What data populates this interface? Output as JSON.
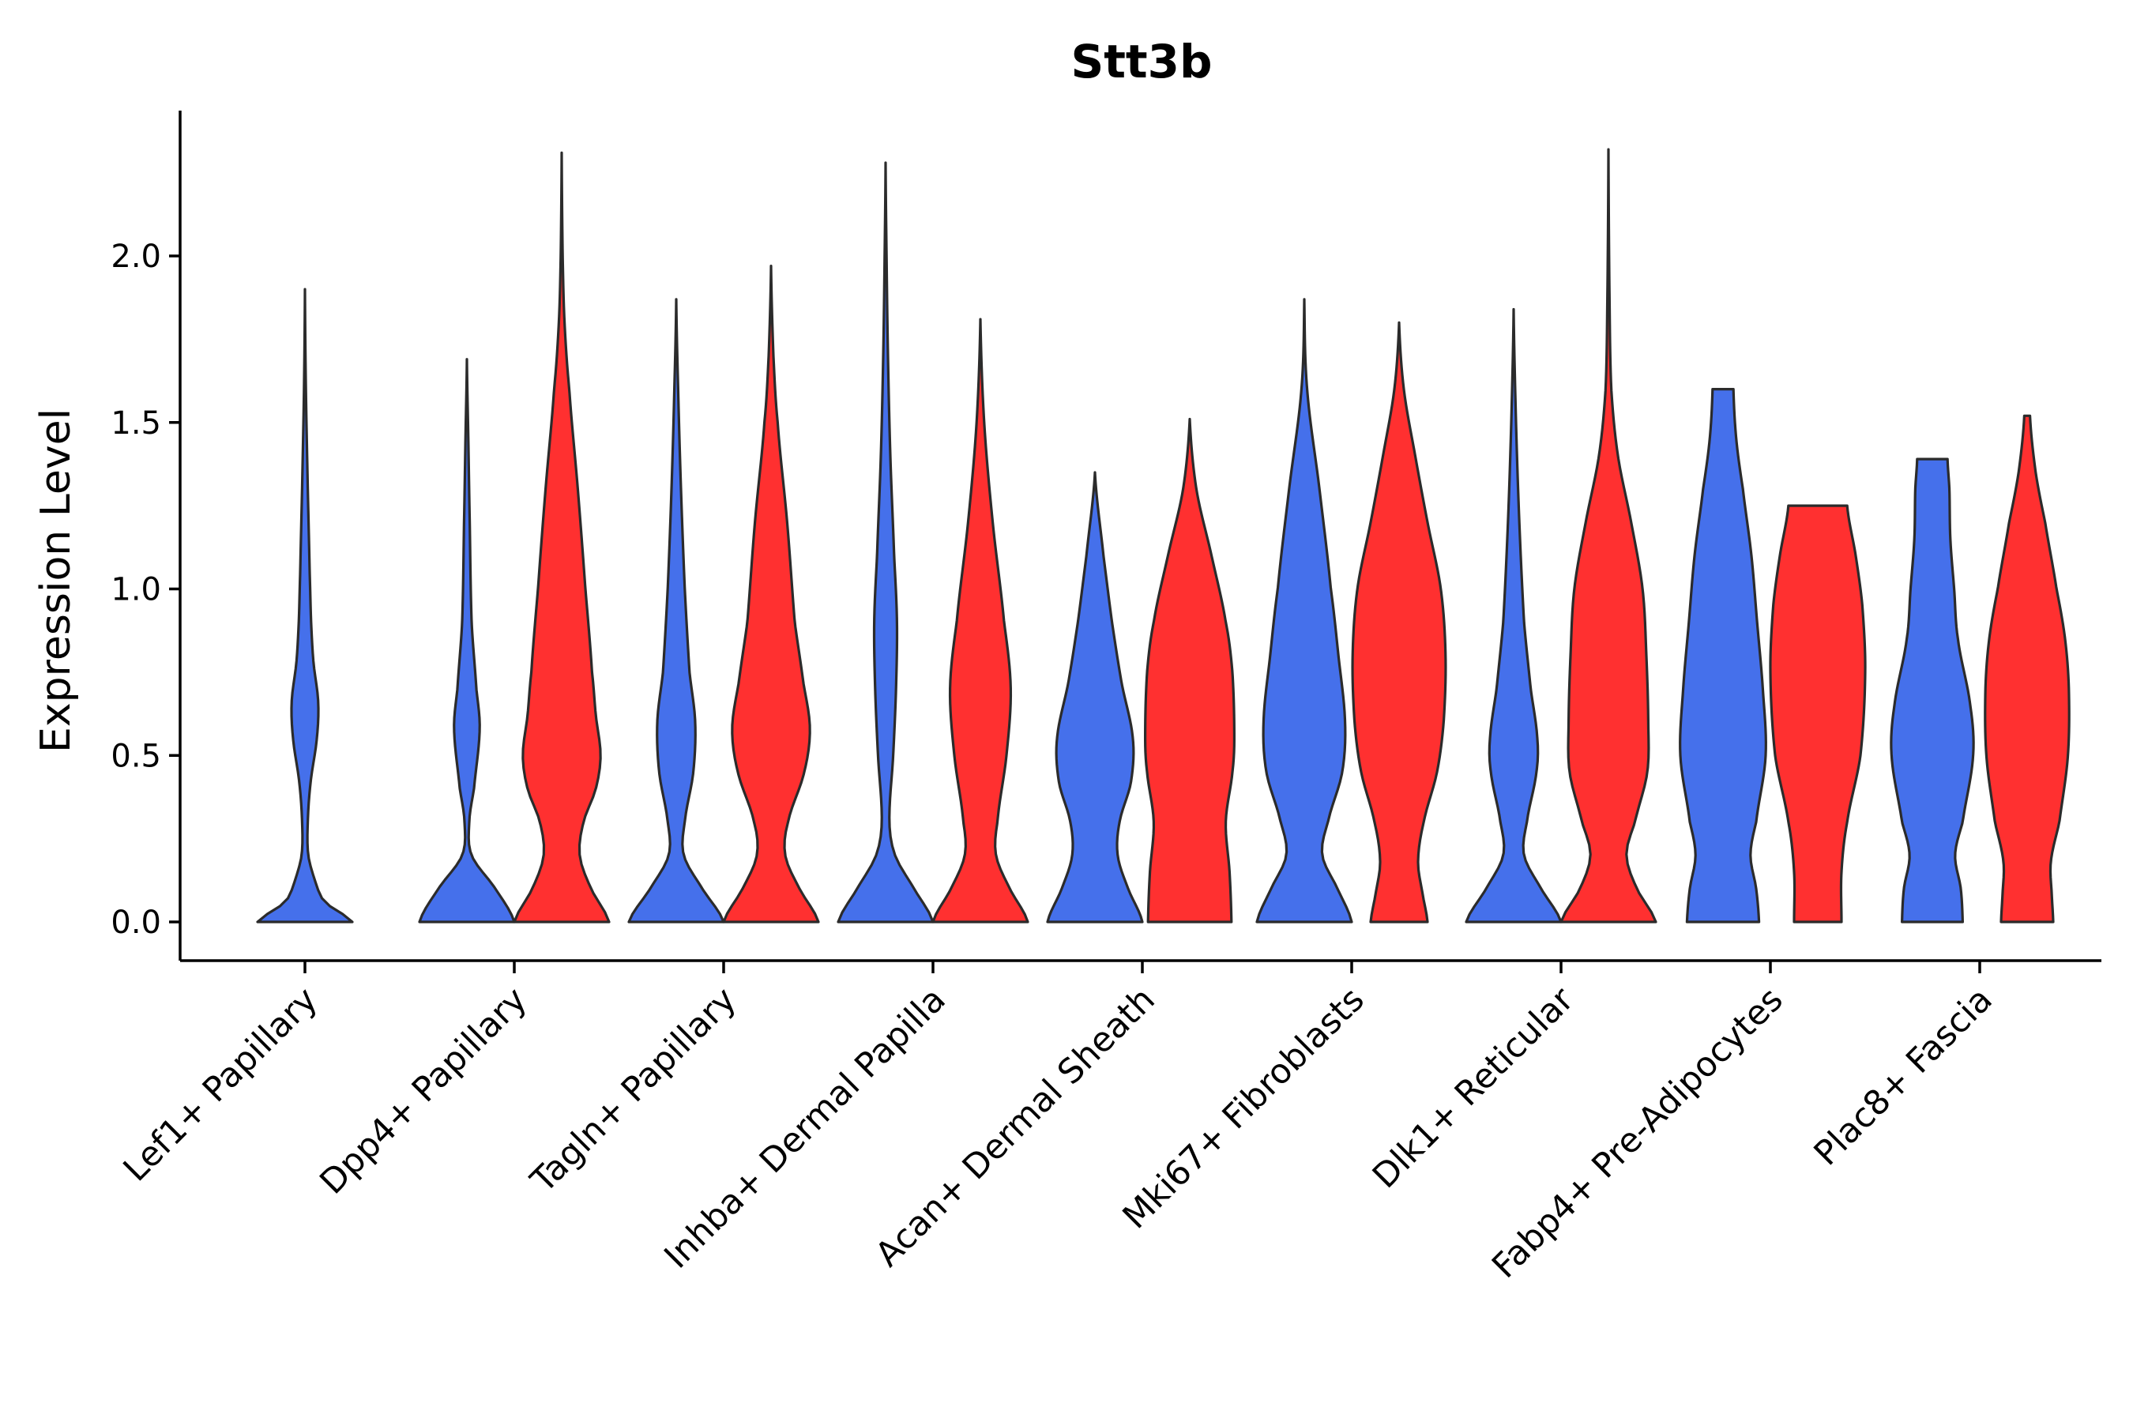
{
  "chart_data": {
    "type": "violin",
    "title": "Stt3b",
    "xlabel": "",
    "ylabel": "Expression Level",
    "ylim": [
      -0.12,
      2.43
    ],
    "yticks": [
      "0.0",
      "0.5",
      "1.0",
      "1.5",
      "2.0"
    ],
    "ytick_values": [
      0.0,
      0.5,
      1.0,
      1.5,
      2.0
    ],
    "categories": [
      "Lef1+ Papillary",
      "Dpp4+ Papillary",
      "Tagln+ Papillary",
      "Inhba+ Dermal Papilla",
      "Acan+ Dermal Sheath",
      "Mki67+ Fibroblasts",
      "Dlk1+ Reticular",
      "Fabp4+ Pre-Adipocytes",
      "Plac8+ Fascia"
    ],
    "series_colors": {
      "blue": "#4570EB",
      "red": "#FF3030"
    },
    "violins": [
      {
        "category": "Lef1+ Papillary",
        "color": "blue",
        "max": 1.9,
        "profile": [
          [
            0,
            1.0
          ],
          [
            0.06,
            0.42
          ],
          [
            0.12,
            0.22
          ],
          [
            0.2,
            0.07
          ],
          [
            0.3,
            0.06
          ],
          [
            0.42,
            0.12
          ],
          [
            0.55,
            0.25
          ],
          [
            0.66,
            0.28
          ],
          [
            0.78,
            0.18
          ],
          [
            0.9,
            0.13
          ],
          [
            1.05,
            0.1
          ],
          [
            1.3,
            0.06
          ],
          [
            1.6,
            0.02
          ],
          [
            1.9,
            0.0
          ]
        ]
      },
      {
        "category": "Dpp4+ Papillary",
        "color": "blue",
        "max": 1.69,
        "profile": [
          [
            0,
            1.0
          ],
          [
            0.1,
            0.6
          ],
          [
            0.2,
            0.1
          ],
          [
            0.3,
            0.05
          ],
          [
            0.4,
            0.15
          ],
          [
            0.58,
            0.27
          ],
          [
            0.7,
            0.2
          ],
          [
            0.9,
            0.1
          ],
          [
            1.2,
            0.06
          ],
          [
            1.45,
            0.03
          ],
          [
            1.69,
            0.0
          ]
        ]
      },
      {
        "category": "Dpp4+ Papillary",
        "color": "red",
        "max": 2.31,
        "profile": [
          [
            0,
            1.0
          ],
          [
            0.1,
            0.62
          ],
          [
            0.2,
            0.38
          ],
          [
            0.3,
            0.46
          ],
          [
            0.4,
            0.72
          ],
          [
            0.5,
            0.82
          ],
          [
            0.62,
            0.72
          ],
          [
            0.75,
            0.64
          ],
          [
            1.0,
            0.5
          ],
          [
            1.3,
            0.34
          ],
          [
            1.6,
            0.16
          ],
          [
            1.8,
            0.06
          ],
          [
            2.0,
            0.02
          ],
          [
            2.31,
            0.0
          ]
        ]
      },
      {
        "category": "Tagln+ Papillary",
        "color": "blue",
        "max": 1.87,
        "profile": [
          [
            0,
            1.0
          ],
          [
            0.1,
            0.55
          ],
          [
            0.2,
            0.16
          ],
          [
            0.3,
            0.18
          ],
          [
            0.45,
            0.36
          ],
          [
            0.6,
            0.4
          ],
          [
            0.75,
            0.28
          ],
          [
            1.0,
            0.18
          ],
          [
            1.3,
            0.1
          ],
          [
            1.6,
            0.04
          ],
          [
            1.87,
            0.0
          ]
        ]
      },
      {
        "category": "Tagln+ Papillary",
        "color": "red",
        "max": 1.97,
        "profile": [
          [
            0,
            1.0
          ],
          [
            0.1,
            0.6
          ],
          [
            0.2,
            0.3
          ],
          [
            0.3,
            0.36
          ],
          [
            0.45,
            0.7
          ],
          [
            0.58,
            0.82
          ],
          [
            0.72,
            0.68
          ],
          [
            0.9,
            0.5
          ],
          [
            1.2,
            0.34
          ],
          [
            1.5,
            0.14
          ],
          [
            1.7,
            0.05
          ],
          [
            1.97,
            0.0
          ]
        ]
      },
      {
        "category": "Inhba+ Dermal Papilla",
        "color": "blue",
        "max": 2.28,
        "profile": [
          [
            0,
            1.0
          ],
          [
            0.1,
            0.6
          ],
          [
            0.2,
            0.2
          ],
          [
            0.3,
            0.08
          ],
          [
            0.5,
            0.16
          ],
          [
            0.7,
            0.22
          ],
          [
            0.9,
            0.24
          ],
          [
            1.1,
            0.18
          ],
          [
            1.4,
            0.1
          ],
          [
            1.7,
            0.05
          ],
          [
            2.0,
            0.02
          ],
          [
            2.28,
            0.0
          ]
        ]
      },
      {
        "category": "Inhba+ Dermal Papilla",
        "color": "red",
        "max": 1.81,
        "profile": [
          [
            0,
            1.0
          ],
          [
            0.1,
            0.62
          ],
          [
            0.2,
            0.33
          ],
          [
            0.3,
            0.36
          ],
          [
            0.5,
            0.55
          ],
          [
            0.7,
            0.64
          ],
          [
            0.9,
            0.5
          ],
          [
            1.2,
            0.26
          ],
          [
            1.5,
            0.08
          ],
          [
            1.81,
            0.0
          ]
        ]
      },
      {
        "category": "Acan+ Dermal Sheath",
        "color": "blue",
        "max": 1.35,
        "profile": [
          [
            0,
            1.0
          ],
          [
            0.1,
            0.7
          ],
          [
            0.2,
            0.48
          ],
          [
            0.3,
            0.52
          ],
          [
            0.42,
            0.76
          ],
          [
            0.55,
            0.8
          ],
          [
            0.72,
            0.56
          ],
          [
            0.9,
            0.36
          ],
          [
            1.1,
            0.18
          ],
          [
            1.35,
            0.0
          ]
        ]
      },
      {
        "category": "Acan+ Dermal Sheath",
        "color": "red",
        "max": 1.51,
        "profile": [
          [
            0,
            0.88
          ],
          [
            0.15,
            0.84
          ],
          [
            0.3,
            0.76
          ],
          [
            0.45,
            0.9
          ],
          [
            0.55,
            0.94
          ],
          [
            0.75,
            0.9
          ],
          [
            0.9,
            0.76
          ],
          [
            1.1,
            0.46
          ],
          [
            1.3,
            0.14
          ],
          [
            1.51,
            0.0
          ]
        ]
      },
      {
        "category": "Mki67+ Fibroblasts",
        "color": "blue",
        "max": 1.87,
        "profile": [
          [
            0,
            1.0
          ],
          [
            0.1,
            0.7
          ],
          [
            0.2,
            0.38
          ],
          [
            0.3,
            0.5
          ],
          [
            0.45,
            0.8
          ],
          [
            0.6,
            0.86
          ],
          [
            0.8,
            0.72
          ],
          [
            1.0,
            0.56
          ],
          [
            1.3,
            0.32
          ],
          [
            1.6,
            0.06
          ],
          [
            1.87,
            0.0
          ]
        ]
      },
      {
        "category": "Mki67+ Fibroblasts",
        "color": "red",
        "max": 1.8,
        "profile": [
          [
            0,
            0.6
          ],
          [
            0.08,
            0.5
          ],
          [
            0.18,
            0.4
          ],
          [
            0.3,
            0.52
          ],
          [
            0.45,
            0.8
          ],
          [
            0.6,
            0.94
          ],
          [
            0.8,
            0.98
          ],
          [
            1.0,
            0.88
          ],
          [
            1.2,
            0.6
          ],
          [
            1.4,
            0.34
          ],
          [
            1.6,
            0.1
          ],
          [
            1.8,
            0.0
          ]
        ]
      },
      {
        "category": "Dlk1+ Reticular",
        "color": "blue",
        "max": 1.84,
        "profile": [
          [
            0,
            1.0
          ],
          [
            0.1,
            0.58
          ],
          [
            0.2,
            0.22
          ],
          [
            0.3,
            0.28
          ],
          [
            0.45,
            0.48
          ],
          [
            0.55,
            0.5
          ],
          [
            0.7,
            0.36
          ],
          [
            0.9,
            0.22
          ],
          [
            1.2,
            0.12
          ],
          [
            1.5,
            0.05
          ],
          [
            1.84,
            0.0
          ]
        ]
      },
      {
        "category": "Dlk1+ Reticular",
        "color": "red",
        "max": 2.32,
        "profile": [
          [
            0,
            1.0
          ],
          [
            0.1,
            0.6
          ],
          [
            0.2,
            0.38
          ],
          [
            0.3,
            0.56
          ],
          [
            0.45,
            0.82
          ],
          [
            0.6,
            0.84
          ],
          [
            0.8,
            0.8
          ],
          [
            1.0,
            0.72
          ],
          [
            1.2,
            0.48
          ],
          [
            1.4,
            0.2
          ],
          [
            1.6,
            0.06
          ],
          [
            1.9,
            0.02
          ],
          [
            2.32,
            0.0
          ]
        ]
      },
      {
        "category": "Fabp4+ Pre-Adipocytes",
        "color": "blue",
        "max": 1.6,
        "profile": [
          [
            0,
            0.76
          ],
          [
            0.1,
            0.7
          ],
          [
            0.2,
            0.58
          ],
          [
            0.3,
            0.7
          ],
          [
            0.5,
            0.9
          ],
          [
            0.7,
            0.84
          ],
          [
            0.9,
            0.72
          ],
          [
            1.1,
            0.6
          ],
          [
            1.3,
            0.42
          ],
          [
            1.45,
            0.28
          ],
          [
            1.6,
            0.22
          ]
        ]
      },
      {
        "category": "Fabp4+ Pre-Adipocytes",
        "color": "red",
        "max": 1.25,
        "profile": [
          [
            0,
            0.5
          ],
          [
            0.15,
            0.5
          ],
          [
            0.3,
            0.62
          ],
          [
            0.5,
            0.9
          ],
          [
            0.75,
            1.0
          ],
          [
            0.95,
            0.94
          ],
          [
            1.1,
            0.8
          ],
          [
            1.25,
            0.62
          ]
        ]
      },
      {
        "category": "Plac8+ Fascia",
        "color": "blue",
        "max": 1.39,
        "profile": [
          [
            0,
            0.64
          ],
          [
            0.1,
            0.6
          ],
          [
            0.2,
            0.48
          ],
          [
            0.3,
            0.64
          ],
          [
            0.5,
            0.86
          ],
          [
            0.65,
            0.8
          ],
          [
            0.85,
            0.54
          ],
          [
            1.0,
            0.46
          ],
          [
            1.15,
            0.38
          ],
          [
            1.3,
            0.36
          ],
          [
            1.39,
            0.32
          ]
        ]
      },
      {
        "category": "Plac8+ Fascia",
        "color": "red",
        "max": 1.52,
        "profile": [
          [
            0,
            0.55
          ],
          [
            0.08,
            0.52
          ],
          [
            0.18,
            0.5
          ],
          [
            0.3,
            0.68
          ],
          [
            0.5,
            0.86
          ],
          [
            0.7,
            0.88
          ],
          [
            0.85,
            0.8
          ],
          [
            1.0,
            0.62
          ],
          [
            1.2,
            0.38
          ],
          [
            1.35,
            0.18
          ],
          [
            1.52,
            0.06
          ]
        ]
      }
    ]
  }
}
